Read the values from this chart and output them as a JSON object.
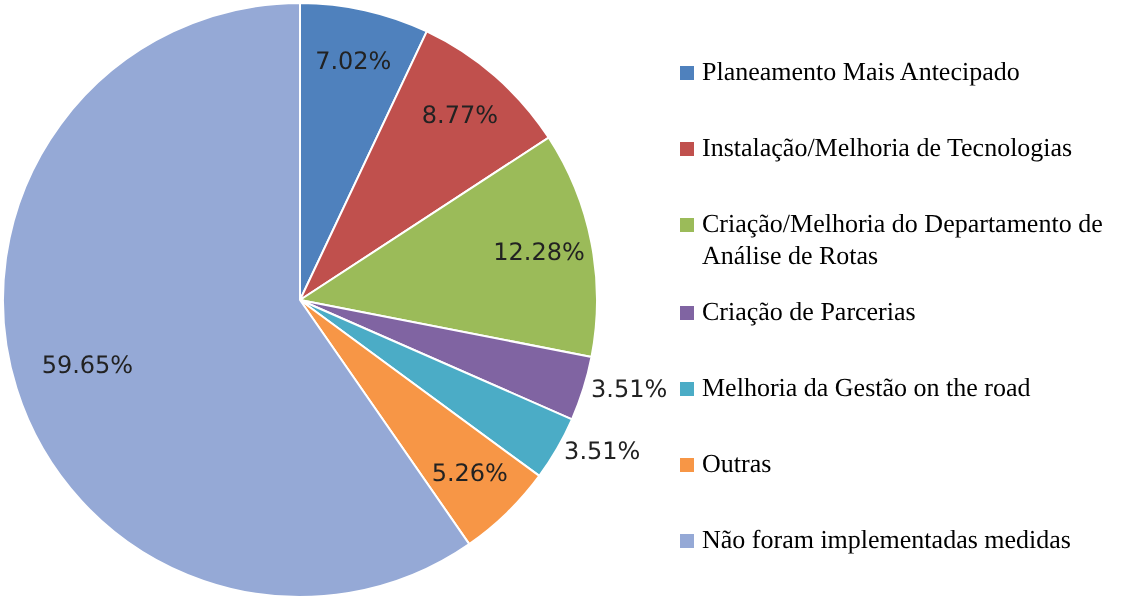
{
  "chart_data": {
    "type": "pie",
    "categories": [
      "Planeamento Mais Antecipado",
      "Instalação/Melhoria de Tecnologias",
      "Criação/Melhoria do Departamento de Análise de Rotas",
      "Criação de Parcerias",
      "Melhoria da Gestão on the road",
      "Outras",
      "Não foram implementadas medidas"
    ],
    "values": [
      7.02,
      8.77,
      12.28,
      3.51,
      3.51,
      5.26,
      59.65
    ],
    "value_labels": [
      "7.02%",
      "8.77%",
      "12.28%",
      "3.51%",
      "3.51%",
      "5.26%",
      "59.65%"
    ],
    "colors": [
      "#4f81bd",
      "#c0504d",
      "#9bbb59",
      "#8064a2",
      "#4bacc6",
      "#f79646",
      "#95a9d6"
    ],
    "legend": "right"
  }
}
